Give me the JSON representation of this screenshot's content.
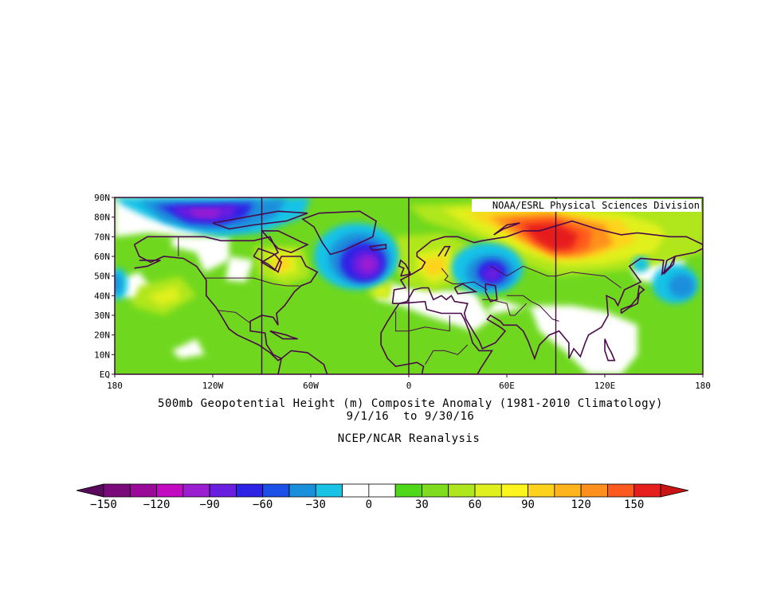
{
  "map": {
    "credit": "NOAA/ESRL Physical Sciences Division",
    "lat_labels": [
      "90N",
      "80N",
      "70N",
      "60N",
      "50N",
      "40N",
      "30N",
      "20N",
      "10N",
      "EQ"
    ],
    "lon_labels": [
      "180",
      "120W",
      "60W",
      "0",
      "60E",
      "120E",
      "180"
    ],
    "extent": {
      "lon": [
        -180,
        180
      ],
      "lat": [
        0,
        90
      ]
    },
    "projection": "cylindrical equidistant",
    "colors": {
      "frame": "#3a0a3a",
      "coastline": "#4a0a4a"
    },
    "anomaly_centers": [
      {
        "name": "north-canada-arctic-low",
        "lon": -122,
        "lat": 81,
        "value": -120
      },
      {
        "name": "north-atlantic-low",
        "lon": -28,
        "lat": 57,
        "value": -90
      },
      {
        "name": "west-russia-low",
        "lon": 50,
        "lat": 52,
        "value": -75
      },
      {
        "name": "siberia-high",
        "lon": 90,
        "lat": 70,
        "value": 120
      },
      {
        "name": "northwest-pacific-low",
        "lon": 160,
        "lat": 46,
        "value": -50
      },
      {
        "name": "northeast-pacific-low",
        "lon": -178,
        "lat": 46,
        "value": -40
      },
      {
        "name": "hudson-bay-high",
        "lon": -75,
        "lat": 58,
        "value": 55
      }
    ]
  },
  "caption": {
    "title": "500mb Geopotential Height (m) Composite Anomaly (1981-2010 Climatology)",
    "dates": "9/1/16  to 9/30/16",
    "source": "NCEP/NCAR Reanalysis"
  },
  "colorbar": {
    "labels": [
      "-150",
      "-120",
      "-90",
      "-60",
      "-30",
      "0",
      "30",
      "60",
      "90",
      "120",
      "150"
    ],
    "colors": [
      "#7a0a7a",
      "#990a99",
      "#c20ac2",
      "#9b1fd1",
      "#6a1fe0",
      "#2e22e5",
      "#1a4fe8",
      "#1a8fdc",
      "#19c3e6",
      "#ffffff",
      "#ffffff",
      "#4fd719",
      "#7fdc1e",
      "#b0e61e",
      "#e0f01e",
      "#fff51e",
      "#ffd21e",
      "#ffb41e",
      "#ff901e",
      "#ff5a1e",
      "#e61e1e"
    ],
    "under_color": "#5a0a5a",
    "over_color": "#c81414"
  }
}
